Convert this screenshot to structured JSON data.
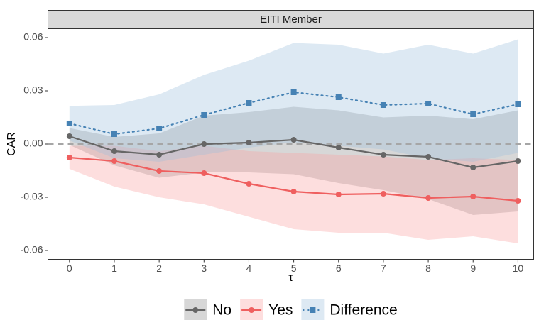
{
  "chart_data": {
    "type": "line",
    "panel_title": "EITI Member",
    "x_label": "τ",
    "y_label": "CAR",
    "x": [
      0,
      1,
      2,
      3,
      4,
      5,
      6,
      7,
      8,
      9,
      10
    ],
    "xlim": [
      -0.48,
      10.35
    ],
    "xticks": [
      0,
      1,
      2,
      3,
      4,
      5,
      6,
      7,
      8,
      9,
      10
    ],
    "ylim": [
      -0.065,
      0.065
    ],
    "yticks": [
      0.06,
      0.03,
      {
        "value": 0,
        "label": "0.00"
      },
      -0.03,
      -0.06
    ],
    "reference_line": {
      "value": 0,
      "color": "#a6a6a6",
      "linestyle": "dashed"
    },
    "grid": false,
    "legend_position": "bottom",
    "series": [
      {
        "name": "No",
        "color": "#666666",
        "band_color": "#8c8c8c",
        "marker": "circle",
        "linestyle": "solid",
        "values": [
          0.0044,
          -0.004,
          -0.006,
          0.0,
          0.0008,
          0.0024,
          -0.002,
          -0.006,
          -0.0072,
          -0.0132,
          -0.0096
        ],
        "lower": [
          -0.0005,
          -0.012,
          -0.019,
          -0.016,
          -0.016,
          -0.017,
          -0.022,
          -0.026,
          -0.031,
          -0.04,
          -0.038
        ],
        "upper": [
          0.009,
          0.004,
          0.006,
          0.016,
          0.018,
          0.021,
          0.019,
          0.015,
          0.016,
          0.014,
          0.019
        ]
      },
      {
        "name": "Yes",
        "color": "#ef5f5f",
        "band_color": "#f8a0a0",
        "marker": "circle",
        "linestyle": "solid",
        "values": [
          -0.0076,
          -0.0096,
          -0.0152,
          -0.0164,
          -0.0224,
          -0.0268,
          -0.0284,
          -0.028,
          -0.0304,
          -0.0296,
          -0.032
        ],
        "lower": [
          -0.014,
          -0.024,
          -0.03,
          -0.034,
          -0.041,
          -0.048,
          -0.05,
          -0.05,
          -0.054,
          -0.052,
          -0.056
        ],
        "upper": [
          -0.001,
          -0.001,
          -0.004,
          -0.001,
          -0.004,
          -0.005,
          -0.006,
          -0.007,
          -0.009,
          -0.008,
          -0.009
        ]
      },
      {
        "name": "Difference",
        "color": "#4682b4",
        "band_color": "#9dbfdc",
        "marker": "square",
        "linestyle": "dotted",
        "values": [
          0.0116,
          0.0056,
          0.0088,
          0.0164,
          0.0232,
          0.0292,
          0.0264,
          0.022,
          0.0228,
          0.0168,
          0.0224
        ],
        "lower": [
          0.002,
          -0.008,
          -0.01,
          -0.006,
          -0.002,
          0.001,
          -0.001,
          -0.003,
          -0.008,
          -0.01,
          -0.005
        ],
        "upper": [
          0.0215,
          0.022,
          0.028,
          0.039,
          0.047,
          0.057,
          0.056,
          0.051,
          0.056,
          0.051,
          0.059
        ]
      }
    ]
  }
}
